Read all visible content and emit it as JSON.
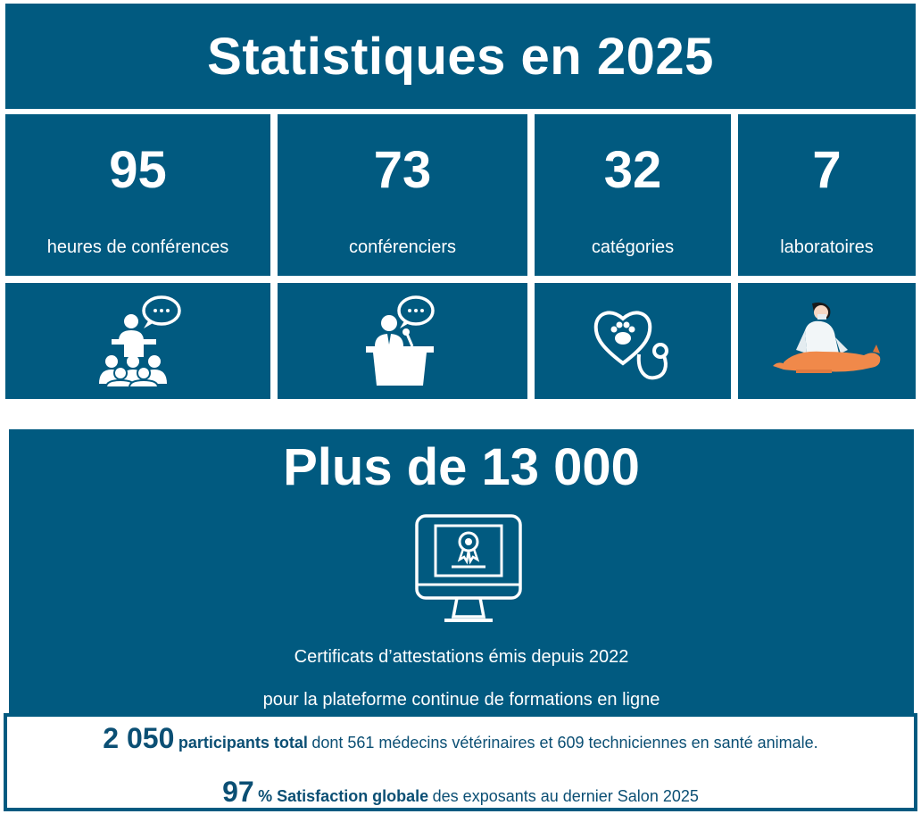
{
  "header": {
    "title": "Statistiques en 2025"
  },
  "stats": [
    {
      "number": "95",
      "label": "heures de conférences",
      "icon": "conference-audience-icon"
    },
    {
      "number": "73",
      "label": "conférenciers",
      "icon": "speaker-podium-icon"
    },
    {
      "number": "32",
      "label": "catégories",
      "icon": "stethoscope-paw-icon"
    },
    {
      "number": "7",
      "label": "laboratoires",
      "icon": "veterinarian-dog-illustration"
    }
  ],
  "certificates": {
    "headline": "Plus de 13 000",
    "icon": "certificate-monitor-icon",
    "line1": "Certificats d’attestations émis depuis 2022",
    "line2": "pour la plateforme continue de formations en ligne"
  },
  "footer": {
    "row1": {
      "number": "2 050",
      "bold": "participants total",
      "text": "dont 561 médecins vétérinaires et 609 techniciennes en santé animale."
    },
    "row2": {
      "number": "97",
      "bold": "% Satisfaction globale",
      "text": "des exposants au dernier Salon 2025"
    }
  },
  "colors": {
    "primary": "#015a80",
    "background": "#ffffff",
    "dog": "#f0894a"
  }
}
